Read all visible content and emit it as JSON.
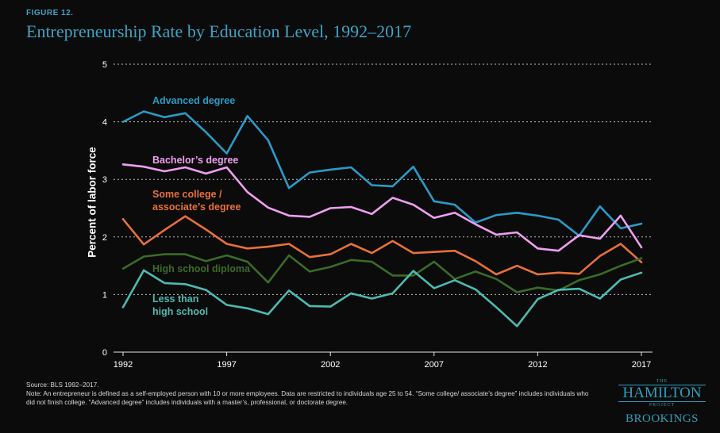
{
  "figure_label": "FIGURE 12.",
  "title": "Entrepreneurship Rate by Education Level, 1992–2017",
  "source": "Source: BLS 1992–2017.",
  "note": "Note: An entrepreneur is defined as a self-employed person with 10 or more employees. Data are restricted to individuals age 25 to 54. “Some college/ associate’s degree” includes individuals who did not finish college. “Advanced degree” includes individuals with a master’s, professional, or doctorate degree.",
  "logo": {
    "the": "THE",
    "name": "HAMILTON",
    "project": "PROJECT",
    "brookings": "BROOKINGS"
  },
  "colors": {
    "background": "#0b0b0b",
    "title": "#3ea3c4",
    "grid": "#bfbfbf"
  },
  "chart_data": {
    "type": "line",
    "ylabel": "Percent of labor force",
    "xlabel": "",
    "xlim": [
      1992,
      2017
    ],
    "ylim": [
      0,
      5
    ],
    "x_ticks": [
      1992,
      1997,
      2002,
      2007,
      2012,
      2017
    ],
    "y_ticks": [
      0,
      1,
      2,
      3,
      4,
      5
    ],
    "grid": "horizontal dotted",
    "x": [
      1992,
      1993,
      1994,
      1995,
      1996,
      1997,
      1998,
      1999,
      2000,
      2001,
      2002,
      2003,
      2004,
      2005,
      2006,
      2007,
      2008,
      2009,
      2010,
      2011,
      2012,
      2013,
      2014,
      2015,
      2016,
      2017
    ],
    "series": [
      {
        "name": "Advanced degree",
        "color": "#2a9bc7",
        "values": [
          4.0,
          4.18,
          4.08,
          4.15,
          3.82,
          3.45,
          4.1,
          3.68,
          2.85,
          3.12,
          3.17,
          3.21,
          2.9,
          2.88,
          3.22,
          2.62,
          2.56,
          2.25,
          2.38,
          2.42,
          2.37,
          2.3,
          2.02,
          2.53,
          2.15,
          2.23
        ]
      },
      {
        "name": "Bachelor’s degree",
        "color": "#ee9ff0",
        "values": [
          3.26,
          3.22,
          3.14,
          3.21,
          3.1,
          3.21,
          2.78,
          2.51,
          2.37,
          2.35,
          2.5,
          2.52,
          2.4,
          2.68,
          2.56,
          2.33,
          2.42,
          2.22,
          2.04,
          2.08,
          1.8,
          1.76,
          2.03,
          1.97,
          2.37,
          1.82
        ]
      },
      {
        "name": "Some college / associate’s degree",
        "color": "#e8703a",
        "values": [
          2.31,
          1.87,
          2.12,
          2.36,
          2.13,
          1.88,
          1.8,
          1.83,
          1.88,
          1.65,
          1.7,
          1.88,
          1.72,
          1.93,
          1.72,
          1.74,
          1.76,
          1.58,
          1.35,
          1.5,
          1.35,
          1.38,
          1.36,
          1.67,
          1.88,
          1.56
        ]
      },
      {
        "name": "High school diploma",
        "color": "#3b6b28",
        "values": [
          1.45,
          1.66,
          1.7,
          1.7,
          1.58,
          1.68,
          1.57,
          1.21,
          1.68,
          1.4,
          1.48,
          1.6,
          1.57,
          1.33,
          1.33,
          1.57,
          1.27,
          1.4,
          1.27,
          1.04,
          1.12,
          1.07,
          1.25,
          1.35,
          1.5,
          1.63
        ]
      },
      {
        "name": "Less than high school",
        "color": "#4dbab2",
        "values": [
          0.78,
          1.42,
          1.2,
          1.18,
          1.08,
          0.82,
          0.76,
          0.66,
          1.07,
          0.8,
          0.79,
          1.02,
          0.93,
          1.02,
          1.41,
          1.11,
          1.25,
          1.09,
          0.78,
          0.45,
          0.92,
          1.08,
          1.1,
          0.93,
          1.26,
          1.38
        ]
      }
    ],
    "annotations": [
      {
        "lines": [
          "Advanced degree"
        ],
        "color": "#2a9bc7"
      },
      {
        "lines": [
          "Bachelor’s degree"
        ],
        "color": "#ee9ff0"
      },
      {
        "lines": [
          "Some college /",
          "associate’s degree"
        ],
        "color": "#e8703a"
      },
      {
        "lines": [
          "High school diploma"
        ],
        "color": "#3b6b28"
      },
      {
        "lines": [
          "Less than",
          "high school"
        ],
        "color": "#4dbab2"
      }
    ]
  }
}
